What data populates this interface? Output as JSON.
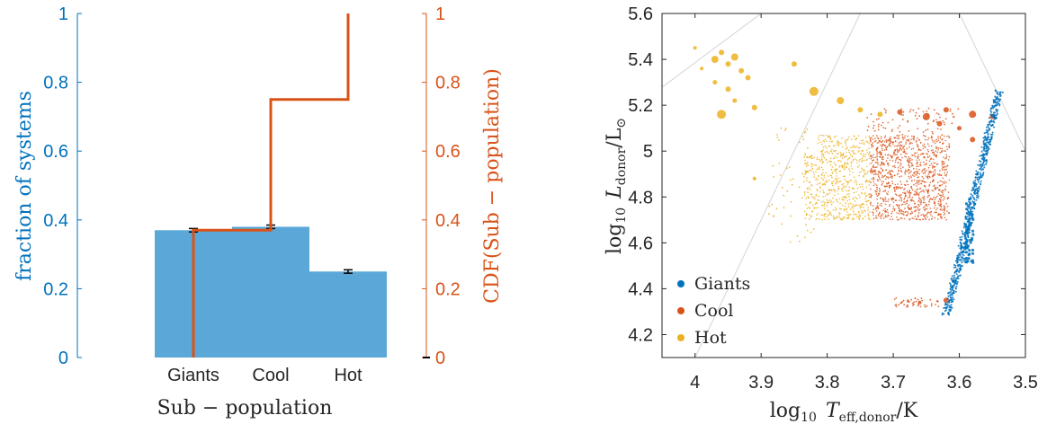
{
  "chart_data": [
    {
      "type": "bar",
      "categories": [
        "Giants",
        "Cool",
        "Hot"
      ],
      "values": [
        0.37,
        0.38,
        0.25
      ],
      "errors": [
        0.005,
        0.005,
        0.005
      ],
      "xlabel": "Sub − population",
      "ylabel": "fraction of systems",
      "ylim": [
        0,
        1
      ],
      "yticks": [
        "0",
        "0.2",
        "0.4",
        "0.6",
        "0.8",
        "1"
      ],
      "bar_color": "#5ba8d8",
      "ylabel_color": "#0072bd",
      "right_axis": {
        "ylabel": "CDF(Sub − population)",
        "color": "#d95319",
        "ylim": [
          0,
          1
        ],
        "yticks": [
          "0",
          "0.2",
          "0.4",
          "0.6",
          "0.8",
          "1"
        ],
        "cdf_steps": [
          0.37,
          0.75,
          1.0
        ]
      }
    },
    {
      "type": "scatter",
      "xlabel_main": "log",
      "xlabel_sub": "10",
      "xlabel_var": "T",
      "xlabel_varsub": "eff,donor",
      "xlabel_unit": "/K",
      "ylabel_main": "log",
      "ylabel_sub": "10",
      "ylabel_var": "L",
      "ylabel_varsub": "donor",
      "ylabel_unit": "/L",
      "ylabel_unit_sub": "⊙",
      "xlim": [
        4.05,
        3.5
      ],
      "ylim": [
        4.1,
        5.6
      ],
      "xticks": [
        "4",
        "3.9",
        "3.8",
        "3.7",
        "3.6",
        "3.5"
      ],
      "yticks": [
        "4.2",
        "4.4",
        "4.6",
        "4.8",
        "5",
        "5.2",
        "5.4",
        "5.6"
      ],
      "legend_position": "bottom-left",
      "series": [
        {
          "name": "Giants",
          "color": "#0072bd"
        },
        {
          "name": "Cool",
          "color": "#d95319"
        },
        {
          "name": "Hot",
          "color": "#edb120"
        }
      ]
    }
  ]
}
